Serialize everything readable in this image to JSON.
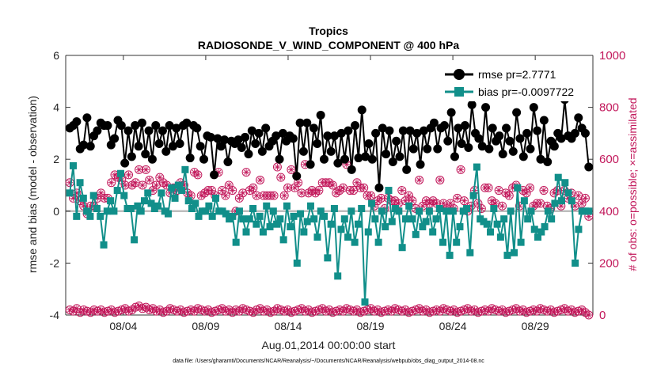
{
  "chart_data": {
    "type": "line",
    "title": "Tropics",
    "subtitle": "RADIOSONDE_V_WIND_COMPONENT @ 400 hPa",
    "xlabel": "Aug.01,2014 00:00:00 start",
    "ylabel": "rmse and bias (model - observation)",
    "y2label": "# of obs: o=possible; ×=assimilated",
    "footnote": "data file: /Users/gharamti/Documents/NCAR/Reanalysis/~/Documents/NCAR/Reanalysis/webpub/obs_diag_output_2014-08.nc",
    "xlim": [
      0.5,
      32.5
    ],
    "ylim": [
      -4,
      6
    ],
    "y2lim": [
      0,
      1000
    ],
    "xticks": [
      4,
      9,
      14,
      19,
      24,
      29
    ],
    "xtick_labels": [
      "08/04",
      "08/09",
      "08/14",
      "08/19",
      "08/24",
      "08/29"
    ],
    "yticks": [
      -4,
      -2,
      0,
      2,
      4,
      6
    ],
    "ytick_labels": [
      "-4",
      "-2",
      "0",
      "2",
      "4",
      "6"
    ],
    "y2ticks": [
      0,
      200,
      400,
      600,
      800,
      1000
    ],
    "y2tick_labels": [
      "0",
      "200",
      "400",
      "600",
      "800",
      "1000"
    ],
    "legend_position": "top-right",
    "colors": {
      "rmse": "#000000",
      "bias": "#118f8a",
      "obs": "#c2185b",
      "zero": "#bdbdbd"
    },
    "series": [
      {
        "name": "rmse",
        "legend": "rmse pr=2.7771",
        "values": [
          3.2,
          3.3,
          3.45,
          2.4,
          2.55,
          3.6,
          2.5,
          2.9,
          3.1,
          3.4,
          3.3,
          3.3,
          2.55,
          2.8,
          3.5,
          3.3,
          1.85,
          3.1,
          2.1,
          3.3,
          2.5,
          3.4,
          2.2,
          3.1,
          2.0,
          3.3,
          2.6,
          3.1,
          2.3,
          3.3,
          2.5,
          3.2,
          2.6,
          3.3,
          3.4,
          2.05,
          3.3,
          3.2,
          2.5,
          2.0,
          2.9,
          2.85,
          1.4,
          2.8,
          2.5,
          2.75,
          1.9,
          2.7,
          2.6,
          2.75,
          2.45,
          2.85,
          2.2,
          3.1,
          2.6,
          3.0,
          2.3,
          3.2,
          2.5,
          2.7,
          2.9,
          2.0,
          3.0,
          2.7,
          2.9,
          2.8,
          1.35,
          3.4,
          2.3,
          3.4,
          1.8,
          3.2,
          2.6,
          3.7,
          2.0,
          2.9,
          2.3,
          2.9,
          1.85,
          3.0,
          2.0,
          3.1,
          1.6,
          3.3,
          2.05,
          3.9,
          2.1,
          2.6,
          2.0,
          3.0,
          0.9,
          3.2,
          2.2,
          3.1,
          1.9,
          2.7,
          2.1,
          3.1,
          1.6,
          3.1,
          2.4,
          3.0,
          1.8,
          3.1,
          2.4,
          3.2,
          3.4,
          2.4,
          3.2,
          3.3,
          2.7,
          3.8,
          2.1,
          3.2,
          2.6,
          3.3,
          2.45,
          4.1,
          3.0,
          2.8,
          2.5,
          4.0,
          2.4,
          3.2,
          2.7,
          2.9,
          2.2,
          3.2,
          2.7,
          2.3,
          3.8,
          2.8,
          2.1,
          3.0,
          2.4,
          4.0,
          3.1,
          2.0,
          3.5,
          1.9,
          2.7,
          2.5,
          3.0,
          2.8,
          4.3,
          2.9,
          2.8,
          3.0,
          3.6,
          3.2,
          3.0,
          1.7
        ],
        "marker": "filled-circle"
      },
      {
        "name": "bias",
        "legend": "bias pr=-0.0097722",
        "values": [
          0.7,
          1.75,
          -0.2,
          1.1,
          0.5,
          0.0,
          -0.2,
          0.6,
          0.1,
          -0.2,
          -1.3,
          0.0,
          0.4,
          0.0,
          0.8,
          1.45,
          0.6,
          0.1,
          0.1,
          -1.1,
          0.2,
          0.0,
          0.4,
          0.7,
          0.3,
          0.1,
          0.2,
          0.7,
          0.0,
          -0.1,
          0.9,
          0.5,
          1.0,
          0.8,
          1.6,
          0.4,
          0.1,
          0.3,
          -0.2,
          0.0,
          0.0,
          0.2,
          -0.2,
          0.5,
          0.0,
          0.0,
          -0.1,
          -0.3,
          -0.2,
          -1.2,
          0.0,
          -0.3,
          -0.8,
          -0.3,
          0.1,
          -0.5,
          -0.2,
          -0.8,
          0.2,
          -0.6,
          0.0,
          -0.5,
          -0.3,
          -1.1,
          0.2,
          -0.6,
          -0.2,
          -2.0,
          -0.1,
          -0.8,
          -0.4,
          0.2,
          -0.3,
          -1.0,
          0.0,
          -0.2,
          -1.8,
          -0.5,
          0.1,
          -2.5,
          -0.7,
          -0.3,
          -1.0,
          0.0,
          -1.2,
          -0.5,
          0.1,
          -3.5,
          -0.8,
          0.3,
          -0.3,
          -1.2,
          0.0,
          -0.6,
          0.8,
          -0.4,
          0.1,
          0.0,
          -1.4,
          -0.3,
          0.2,
          -0.3,
          -0.9,
          0.0,
          -0.6,
          -0.4,
          0.0,
          -0.8,
          -0.3,
          0.1,
          -1.2,
          0.0,
          -1.7,
          0.0,
          -1.2,
          -0.6,
          0.0,
          0.1,
          -1.6,
          0.6,
          1.7,
          -0.3,
          -0.4,
          -0.5,
          -0.8,
          0.1,
          -0.5,
          -1.0,
          -0.3,
          -1.7,
          0.0,
          -1.6,
          0.9,
          -1.2,
          0.4,
          -0.3,
          0.0,
          -0.7,
          -1.0,
          -0.8,
          -0.6,
          0.0,
          -0.3,
          0.3,
          1.3,
          0.4,
          1.1,
          0.7,
          0.4,
          -2.0,
          -0.7,
          0.0,
          0.0,
          0.0
        ],
        "marker": "filled-square"
      },
      {
        "name": "obs_possible_mid",
        "axis": "right",
        "values": [
          510,
          450,
          470,
          440,
          420,
          390,
          420,
          420,
          450,
          470,
          450,
          450,
          510,
          540,
          530,
          520,
          500,
          540,
          500,
          510,
          560,
          500,
          560,
          520,
          480,
          500,
          530,
          510,
          500,
          470,
          490,
          480,
          510,
          500,
          470,
          460,
          550,
          540,
          460,
          470,
          480,
          480,
          460,
          550,
          480,
          460,
          500,
          480,
          400,
          450,
          470,
          550,
          480,
          490,
          460,
          520,
          460,
          460,
          460,
          460,
          570,
          530,
          460,
          490,
          560,
          490,
          510,
          470,
          580,
          470,
          480,
          470,
          480,
          510,
          510,
          510,
          500,
          470,
          480,
          490,
          580,
          480,
          480,
          510,
          490,
          490,
          460,
          460,
          420,
          440,
          450,
          410,
          450,
          440,
          440,
          430,
          480,
          440,
          460,
          440,
          410,
          520,
          420,
          440,
          430,
          440,
          430,
          520,
          430,
          410,
          430,
          410,
          450,
          560,
          440,
          400,
          420,
          480,
          430,
          410,
          490,
          490,
          440,
          430,
          480,
          420,
          470,
          460,
          490,
          500,
          420,
          480,
          470,
          490,
          420,
          430,
          430,
          480,
          420,
          410,
          470,
          480,
          420,
          480,
          450,
          470,
          420,
          460,
          430,
          450,
          380
        ],
        "marker": "circle-star"
      },
      {
        "name": "obs_possible_low",
        "axis": "right",
        "values": [
          20,
          15,
          25,
          10,
          20,
          15,
          10,
          20,
          15,
          20,
          10,
          15,
          20,
          10,
          15,
          20,
          25,
          15,
          20,
          30,
          35,
          25,
          30,
          20,
          25,
          15,
          20,
          10,
          15,
          25,
          20,
          15,
          20,
          10,
          15,
          20,
          15,
          25,
          20,
          15,
          20,
          10,
          15,
          20,
          25,
          15,
          20,
          10,
          20,
          15,
          25,
          20,
          15,
          10,
          20,
          25,
          15,
          20,
          10,
          15,
          25,
          20,
          15,
          20,
          10,
          15,
          20,
          25,
          15,
          20,
          10,
          15,
          20,
          25,
          15,
          20,
          10,
          15,
          20,
          15,
          25,
          20,
          15,
          20,
          10,
          15,
          20,
          25,
          15,
          20,
          10,
          15,
          20,
          15,
          25,
          20,
          15,
          20,
          10,
          15,
          20,
          25,
          15,
          20,
          10,
          15,
          20,
          15,
          25,
          20,
          15,
          20,
          10,
          15,
          20,
          25,
          15,
          20,
          10,
          15,
          20,
          15,
          25,
          20,
          15,
          20,
          10,
          15,
          20,
          25,
          15,
          20,
          10,
          15,
          20,
          15,
          25,
          20,
          15,
          20,
          10,
          15,
          20,
          25,
          15,
          20,
          10,
          15,
          20,
          10,
          0
        ],
        "marker": "circle-star"
      }
    ]
  }
}
